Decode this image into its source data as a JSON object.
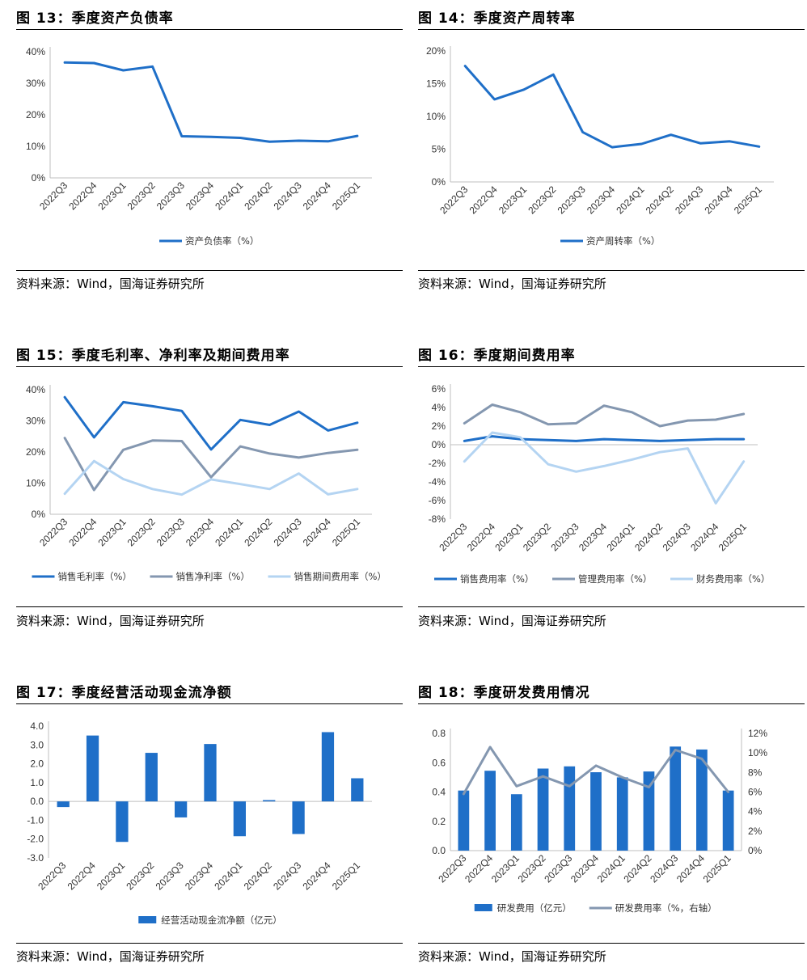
{
  "colors": {
    "dark": "#1F6FC8",
    "gray": "#8497B0",
    "light": "#B4D4F2",
    "bar": "#1F6FC8",
    "axis": "#BFBFBF"
  },
  "charts": [
    {
      "id": "c13",
      "title": "图 13：季度资产负债率",
      "source": "资料来源：Wind，国海证券研究所",
      "chart_data": {
        "type": "line",
        "categories": [
          "2022Q3",
          "2022Q4",
          "2023Q1",
          "2023Q2",
          "2023Q3",
          "2023Q4",
          "2024Q1",
          "2024Q2",
          "2024Q3",
          "2024Q4",
          "2025Q1"
        ],
        "series": [
          {
            "name": "资产负债率（%）",
            "color": "dark",
            "values": [
              36.6,
              36.4,
              34.1,
              35.3,
              13.2,
              13.0,
              12.7,
              11.5,
              11.8,
              11.6,
              13.3
            ]
          }
        ],
        "ylim": [
          0,
          40
        ],
        "yticks": [
          0,
          10,
          20,
          30,
          40
        ],
        "ytick_labels": [
          "0%",
          "10%",
          "20%",
          "30%",
          "40%"
        ]
      }
    },
    {
      "id": "c14",
      "title": "图 14：季度资产周转率",
      "source": "资料来源：Wind，国海证券研究所",
      "chart_data": {
        "type": "line",
        "categories": [
          "2022Q3",
          "2022Q4",
          "2023Q1",
          "2023Q2",
          "2023Q3",
          "2023Q4",
          "2024Q1",
          "2024Q2",
          "2024Q3",
          "2024Q4",
          "2025Q1"
        ],
        "series": [
          {
            "name": "资产周转率（%）",
            "color": "dark",
            "values": [
              17.7,
              12.6,
              14.1,
              16.4,
              7.6,
              5.3,
              5.8,
              7.2,
              5.9,
              6.2,
              5.4
            ]
          }
        ],
        "ylim": [
          0,
          20
        ],
        "yticks": [
          0,
          5,
          10,
          15,
          20
        ],
        "ytick_labels": [
          "0%",
          "5%",
          "10%",
          "15%",
          "20%"
        ]
      }
    },
    {
      "id": "c15",
      "title": "图 15：季度毛利率、净利率及期间费用率",
      "source": "资料来源：Wind，国海证券研究所",
      "chart_data": {
        "type": "line",
        "categories": [
          "2022Q3",
          "2022Q4",
          "2023Q1",
          "2023Q2",
          "2023Q3",
          "2023Q4",
          "2024Q1",
          "2024Q2",
          "2024Q3",
          "2024Q4",
          "2025Q1"
        ],
        "series": [
          {
            "name": "销售毛利率（%）",
            "color": "dark",
            "values": [
              37.6,
              24.7,
              36.0,
              34.7,
              33.2,
              20.8,
              30.3,
              28.7,
              33.0,
              26.9,
              29.4
            ]
          },
          {
            "name": "销售净利率（%）",
            "color": "gray",
            "values": [
              24.5,
              7.8,
              20.7,
              23.7,
              23.5,
              11.9,
              21.8,
              19.5,
              18.2,
              19.7,
              20.7
            ]
          },
          {
            "name": "销售期间费用率（%）",
            "color": "light",
            "values": [
              6.6,
              17.1,
              11.3,
              8.1,
              6.3,
              11.2,
              9.7,
              8.1,
              13.1,
              6.4,
              8.1
            ]
          }
        ],
        "ylim": [
          0,
          40
        ],
        "yticks": [
          0,
          10,
          20,
          30,
          40
        ],
        "ytick_labels": [
          "0%",
          "10%",
          "20%",
          "30%",
          "40%"
        ]
      }
    },
    {
      "id": "c16",
      "title": "图 16：季度期间费用率",
      "source": "资料来源：Wind，国海证券研究所",
      "chart_data": {
        "type": "line",
        "categories": [
          "2022Q3",
          "2022Q4",
          "2023Q1",
          "2023Q2",
          "2023Q3",
          "2023Q4",
          "2024Q1",
          "2024Q2",
          "2024Q3",
          "2024Q4",
          "2025Q1"
        ],
        "series": [
          {
            "name": "销售费用率（%）",
            "color": "dark",
            "values": [
              0.4,
              0.9,
              0.6,
              0.5,
              0.4,
              0.6,
              0.5,
              0.4,
              0.5,
              0.6,
              0.6
            ]
          },
          {
            "name": "管理费用率（%）",
            "color": "gray",
            "values": [
              2.3,
              4.3,
              3.5,
              2.2,
              2.3,
              4.2,
              3.5,
              2.0,
              2.6,
              2.7,
              3.3
            ]
          },
          {
            "name": "财务费用率（%）",
            "color": "light",
            "values": [
              -1.8,
              1.3,
              0.8,
              -2.1,
              -2.9,
              -2.3,
              -1.6,
              -0.8,
              -0.4,
              -6.3,
              -1.8
            ]
          }
        ],
        "ylim": [
          -8,
          6
        ],
        "yticks": [
          -8,
          -6,
          -4,
          -2,
          0,
          2,
          4,
          6
        ],
        "ytick_labels": [
          "-8%",
          "-6%",
          "-4%",
          "-2%",
          "0%",
          "2%",
          "4%",
          "6%"
        ]
      }
    },
    {
      "id": "c17",
      "title": "图 17：季度经营活动现金流净额",
      "source": "资料来源：Wind，国海证券研究所",
      "chart_data": {
        "type": "bar",
        "categories": [
          "2022Q3",
          "2022Q4",
          "2023Q1",
          "2023Q2",
          "2023Q3",
          "2023Q4",
          "2024Q1",
          "2024Q2",
          "2024Q3",
          "2024Q4",
          "2025Q1"
        ],
        "series": [
          {
            "name": "经营活动现金流净额（亿元）",
            "color": "bar",
            "values": [
              -0.3,
              3.5,
              -2.15,
              2.58,
              -0.85,
              3.05,
              -1.85,
              0.07,
              -1.73,
              3.68,
              1.23
            ]
          }
        ],
        "ylim": [
          -3,
          4
        ],
        "yticks": [
          -3,
          -2,
          -1,
          0,
          1,
          2,
          3,
          4
        ],
        "ytick_labels": [
          "-3.0",
          "-2.0",
          "-1.0",
          "0.0",
          "1.0",
          "2.0",
          "3.0",
          "4.0"
        ]
      }
    },
    {
      "id": "c18",
      "title": "图 18：季度研发费用情况",
      "source": "资料来源：Wind，国海证券研究所",
      "chart_data": {
        "type": "bar",
        "categories": [
          "2022Q3",
          "2022Q4",
          "2023Q1",
          "2023Q2",
          "2023Q3",
          "2023Q4",
          "2024Q1",
          "2024Q2",
          "2024Q3",
          "2024Q4",
          "2025Q1"
        ],
        "series": [
          {
            "name": "研发费用（亿元）",
            "type": "bar",
            "color": "bar",
            "values": [
              0.41,
              0.545,
              0.385,
              0.56,
              0.575,
              0.535,
              0.5,
              0.54,
              0.71,
              0.69,
              0.41
            ]
          },
          {
            "name": "研发费用率（%，右轴）",
            "type": "line",
            "axis": "right",
            "color": "gray",
            "values": [
              5.8,
              10.6,
              6.6,
              7.6,
              6.6,
              8.7,
              7.5,
              6.5,
              10.3,
              9.4,
              6.0
            ]
          }
        ],
        "ylim": [
          0,
          0.8
        ],
        "yticks": [
          0,
          0.2,
          0.4,
          0.6,
          0.8
        ],
        "ytick_labels": [
          "0.0",
          "0.2",
          "0.4",
          "0.6",
          "0.8"
        ],
        "y2lim": [
          0,
          12
        ],
        "y2ticks": [
          0,
          2,
          4,
          6,
          8,
          10,
          12
        ],
        "y2tick_labels": [
          "0%",
          "2%",
          "4%",
          "6%",
          "8%",
          "10%",
          "12%"
        ]
      }
    }
  ]
}
